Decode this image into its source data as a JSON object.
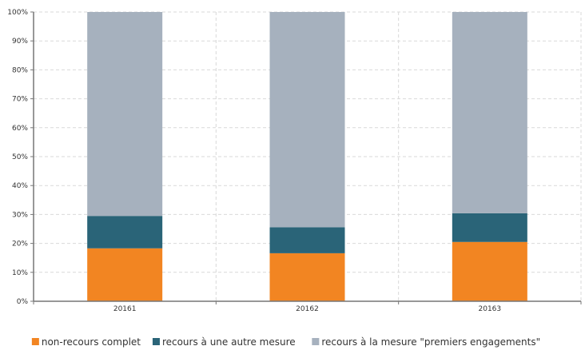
{
  "chart_data": {
    "type": "bar",
    "stacked": true,
    "normalized": true,
    "categories": [
      "20161",
      "20162",
      "20163"
    ],
    "series": [
      {
        "name": "non-recours complet",
        "values": [
          18.3,
          16.6,
          20.5
        ],
        "color": "#f28522"
      },
      {
        "name": "recours à une autre mesure",
        "values": [
          11.2,
          9.0,
          9.9
        ],
        "color": "#2a6478"
      },
      {
        "name": "recours à la mesure \"premiers engagements\"",
        "values": [
          70.5,
          74.4,
          69.6
        ],
        "color": "#a6b1be"
      }
    ],
    "ylim": [
      0,
      100
    ],
    "yticks": [
      0,
      10,
      20,
      30,
      40,
      50,
      60,
      70,
      80,
      90,
      100
    ],
    "ytick_labels": [
      "0%",
      "10%",
      "20%",
      "30%",
      "40%",
      "50%",
      "60%",
      "70%",
      "80%",
      "90%",
      "100%"
    ],
    "grid": true,
    "legend_position": "bottom"
  }
}
